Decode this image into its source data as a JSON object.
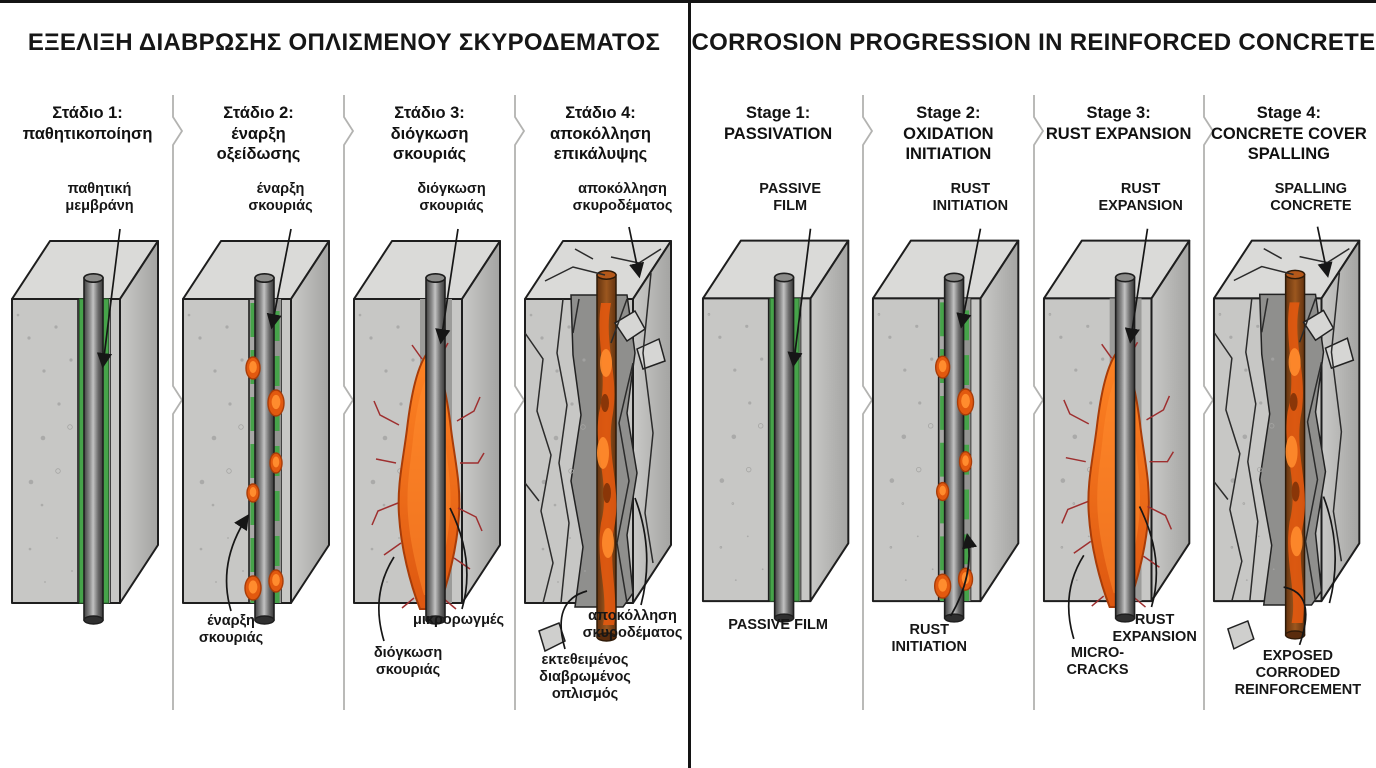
{
  "panels": [
    {
      "id": "greek",
      "title": "ΕΞΕΛΙΞΗ ΔΙΑΒΡΩΣΗΣ ΟΠΛΙΣΜΕΝΟΥ ΣΚΥΡΟΔΕΜΑΤΟΣ",
      "stages": [
        {
          "stage_label": "Στάδιο 1:",
          "stage_name": "παθητικοποίηση",
          "labels": {
            "top": "παθητική\nμεμβράνη"
          }
        },
        {
          "stage_label": "Στάδιο 2:",
          "stage_name": "έναρξη\nοξείδωσης",
          "labels": {
            "top": "έναρξη\nσκουριάς",
            "bottom_left": "έναρξη\nσκουριάς"
          }
        },
        {
          "stage_label": "Στάδιο 3:",
          "stage_name": "διόγκωση\nσκουριάς",
          "labels": {
            "top": "διόγκωση\nσκουριάς",
            "bottom_left": "διόγκωση\nσκουριάς",
            "bottom_right": "μικρορωγμές"
          }
        },
        {
          "stage_label": "Στάδιο 4:",
          "stage_name": "αποκόλληση\nεπικάλυψης",
          "labels": {
            "top": "αποκόλληση\nσκυροδέματος",
            "bottom_left": "εκτεθειμένος\nδιαβρωμένος\nοπλισμός",
            "bottom_right": "αποκόλληση\nσκυροδέματος"
          }
        }
      ]
    },
    {
      "id": "english",
      "title": "CORROSION PROGRESSION IN REINFORCED CONCRETE",
      "stages": [
        {
          "stage_label": "Stage 1:",
          "stage_name": "PASSIVATION",
          "labels": {
            "top": "PASSIVE\nFILM",
            "bottom_center": "PASSIVE FILM"
          }
        },
        {
          "stage_label": "Stage 2:",
          "stage_name": "OXIDATION\nINITIATION",
          "labels": {
            "top": "RUST\nINITIATION",
            "bottom_center": "RUST\nINITIATION"
          }
        },
        {
          "stage_label": "Stage 3:",
          "stage_name": "RUST EXPANSION",
          "labels": {
            "top": "RUST\nEXPANSION",
            "bottom_left": "MICRO-\nCRACKS",
            "bottom_right": "RUST\nEXPANSION"
          }
        },
        {
          "stage_label": "Stage 4:",
          "stage_name": "CONCRETE COVER\nSPALLING",
          "labels": {
            "top": "SPALLING\nCONCRETE",
            "bottom_center": "EXPOSED\nCORRODED\nREINFORCEMENT"
          }
        }
      ]
    }
  ],
  "colors": {
    "background": "#ffffff",
    "text": "#161616",
    "divider": "#b3b3b1",
    "center_divider": "#141414",
    "concrete_front": "#c7c7c5",
    "concrete_top": "#dadad8",
    "concrete_side_light": "#c9c9c7",
    "concrete_side_dark": "#a4a4a2",
    "speckle": "#a5a5a3",
    "outline": "#1e1e1e",
    "passive_film_green": "#46a34a",
    "film_edge_green": "#2c6e2f",
    "rust_orange": "#e2590f",
    "rust_bright": "#ff8c2e",
    "rust_dark": "#a83c08",
    "crack_red": "#9e2f2f",
    "cavity_gray": "#8f8f8d",
    "corroded_steel_brown": "#8a4a1e",
    "crack_line": "#2b2b2b"
  }
}
